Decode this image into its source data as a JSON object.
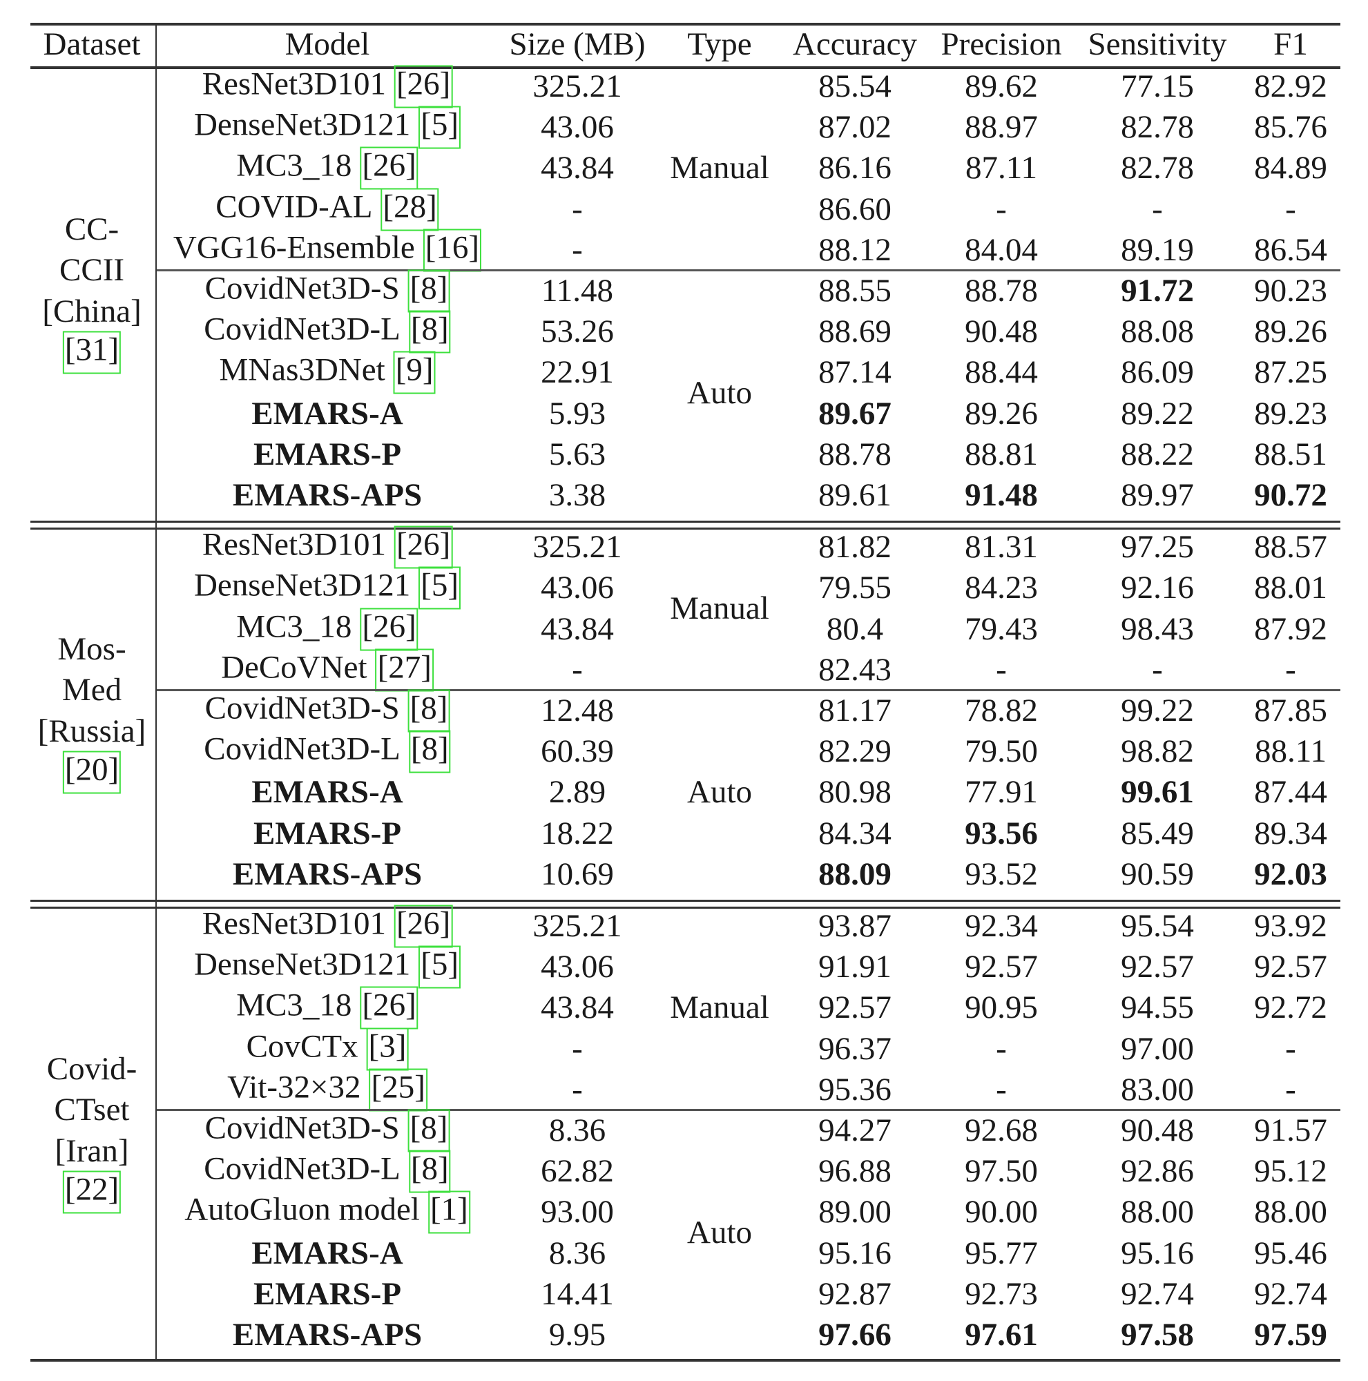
{
  "headers": {
    "dataset": "Dataset",
    "model": "Model",
    "size": "Size (MB)",
    "type": "Type",
    "accuracy": "Accuracy",
    "precision": "Precision",
    "sensitivity": "Sensitivity",
    "f1": "F1"
  },
  "colors": {
    "citation_box": "#3de03d",
    "rule": "#333333"
  },
  "sections": [
    {
      "dataset_lines": [
        "CC-",
        "CCII",
        "[China]"
      ],
      "dataset_cite": "[31]",
      "groups": [
        {
          "type": "Manual",
          "rows": [
            {
              "model": "ResNet3D101",
              "cite": "[26]",
              "size": "325.21",
              "accuracy": "85.54",
              "precision": "89.62",
              "sensitivity": "77.15",
              "f1": "82.92",
              "bold": []
            },
            {
              "model": "DenseNet3D121",
              "cite": "[5]",
              "size": "43.06",
              "accuracy": "87.02",
              "precision": "88.97",
              "sensitivity": "82.78",
              "f1": "85.76",
              "bold": []
            },
            {
              "model": "MC3_18",
              "cite": "[26]",
              "size": "43.84",
              "accuracy": "86.16",
              "precision": "87.11",
              "sensitivity": "82.78",
              "f1": "84.89",
              "bold": []
            },
            {
              "model": "COVID-AL",
              "cite": "[28]",
              "size": "-",
              "accuracy": "86.60",
              "precision": "-",
              "sensitivity": "-",
              "f1": "-",
              "bold": []
            },
            {
              "model": "VGG16-Ensemble",
              "cite": "[16]",
              "size": "-",
              "accuracy": "88.12",
              "precision": "84.04",
              "sensitivity": "89.19",
              "f1": "86.54",
              "bold": []
            }
          ]
        },
        {
          "type": "Auto",
          "rows": [
            {
              "model": "CovidNet3D-S",
              "cite": "[8]",
              "size": "11.48",
              "accuracy": "88.55",
              "precision": "88.78",
              "sensitivity": "91.72",
              "f1": "90.23",
              "bold": [
                "sensitivity"
              ]
            },
            {
              "model": "CovidNet3D-L",
              "cite": "[8]",
              "size": "53.26",
              "accuracy": "88.69",
              "precision": "90.48",
              "sensitivity": "88.08",
              "f1": "89.26",
              "bold": []
            },
            {
              "model": "MNas3DNet",
              "cite": "[9]",
              "size": "22.91",
              "accuracy": "87.14",
              "precision": "88.44",
              "sensitivity": "86.09",
              "f1": "87.25",
              "bold": []
            },
            {
              "model": "EMARS-A",
              "cite": "",
              "size": "5.93",
              "accuracy": "89.67",
              "precision": "89.26",
              "sensitivity": "89.22",
              "f1": "89.23",
              "bold": [
                "model",
                "accuracy"
              ]
            },
            {
              "model": "EMARS-P",
              "cite": "",
              "size": "5.63",
              "accuracy": "88.78",
              "precision": "88.81",
              "sensitivity": "88.22",
              "f1": "88.51",
              "bold": [
                "model"
              ]
            },
            {
              "model": "EMARS-APS",
              "cite": "",
              "size": "3.38",
              "accuracy": "89.61",
              "precision": "91.48",
              "sensitivity": "89.97",
              "f1": "90.72",
              "bold": [
                "model",
                "precision",
                "f1"
              ]
            }
          ]
        }
      ]
    },
    {
      "dataset_lines": [
        "Mos-",
        "Med",
        "[Russia]"
      ],
      "dataset_cite": "[20]",
      "groups": [
        {
          "type": "Manual",
          "rows": [
            {
              "model": "ResNet3D101",
              "cite": "[26]",
              "size": "325.21",
              "accuracy": "81.82",
              "precision": "81.31",
              "sensitivity": "97.25",
              "f1": "88.57",
              "bold": []
            },
            {
              "model": "DenseNet3D121",
              "cite": "[5]",
              "size": "43.06",
              "accuracy": "79.55",
              "precision": "84.23",
              "sensitivity": "92.16",
              "f1": "88.01",
              "bold": []
            },
            {
              "model": "MC3_18",
              "cite": "[26]",
              "size": "43.84",
              "accuracy": "80.4",
              "precision": "79.43",
              "sensitivity": "98.43",
              "f1": "87.92",
              "bold": []
            },
            {
              "model": "DeCoVNet",
              "cite": "[27]",
              "size": "-",
              "accuracy": "82.43",
              "precision": "-",
              "sensitivity": "-",
              "f1": "-",
              "bold": []
            }
          ]
        },
        {
          "type": "Auto",
          "rows": [
            {
              "model": "CovidNet3D-S",
              "cite": "[8]",
              "size": "12.48",
              "accuracy": "81.17",
              "precision": "78.82",
              "sensitivity": "99.22",
              "f1": "87.85",
              "bold": []
            },
            {
              "model": "CovidNet3D-L",
              "cite": "[8]",
              "size": "60.39",
              "accuracy": "82.29",
              "precision": "79.50",
              "sensitivity": "98.82",
              "f1": "88.11",
              "bold": []
            },
            {
              "model": "EMARS-A",
              "cite": "",
              "size": "2.89",
              "accuracy": "80.98",
              "precision": "77.91",
              "sensitivity": "99.61",
              "f1": "87.44",
              "bold": [
                "model",
                "sensitivity"
              ]
            },
            {
              "model": "EMARS-P",
              "cite": "",
              "size": "18.22",
              "accuracy": "84.34",
              "precision": "93.56",
              "sensitivity": "85.49",
              "f1": "89.34",
              "bold": [
                "model",
                "precision"
              ]
            },
            {
              "model": "EMARS-APS",
              "cite": "",
              "size": "10.69",
              "accuracy": "88.09",
              "precision": "93.52",
              "sensitivity": "90.59",
              "f1": "92.03",
              "bold": [
                "model",
                "accuracy",
                "f1"
              ]
            }
          ]
        }
      ]
    },
    {
      "dataset_lines": [
        "Covid-",
        "CTset",
        "[Iran]"
      ],
      "dataset_cite": "[22]",
      "groups": [
        {
          "type": "Manual",
          "rows": [
            {
              "model": "ResNet3D101",
              "cite": "[26]",
              "size": "325.21",
              "accuracy": "93.87",
              "precision": "92.34",
              "sensitivity": "95.54",
              "f1": "93.92",
              "bold": []
            },
            {
              "model": "DenseNet3D121",
              "cite": "[5]",
              "size": "43.06",
              "accuracy": "91.91",
              "precision": "92.57",
              "sensitivity": "92.57",
              "f1": "92.57",
              "bold": []
            },
            {
              "model": "MC3_18",
              "cite": "[26]",
              "size": "43.84",
              "accuracy": "92.57",
              "precision": "90.95",
              "sensitivity": "94.55",
              "f1": "92.72",
              "bold": []
            },
            {
              "model": "CovCTx",
              "cite": "[3]",
              "size": "-",
              "accuracy": "96.37",
              "precision": "-",
              "sensitivity": "97.00",
              "f1": "-",
              "bold": []
            },
            {
              "model": "Vit-32×32",
              "cite": "[25]",
              "size": "-",
              "accuracy": "95.36",
              "precision": "-",
              "sensitivity": "83.00",
              "f1": "-",
              "bold": []
            }
          ]
        },
        {
          "type": "Auto",
          "rows": [
            {
              "model": "CovidNet3D-S",
              "cite": "[8]",
              "size": "8.36",
              "accuracy": "94.27",
              "precision": "92.68",
              "sensitivity": "90.48",
              "f1": "91.57",
              "bold": []
            },
            {
              "model": "CovidNet3D-L",
              "cite": "[8]",
              "size": "62.82",
              "accuracy": "96.88",
              "precision": "97.50",
              "sensitivity": "92.86",
              "f1": "95.12",
              "bold": []
            },
            {
              "model": "AutoGluon model",
              "cite": "[1]",
              "size": "93.00",
              "accuracy": "89.00",
              "precision": "90.00",
              "sensitivity": "88.00",
              "f1": "88.00",
              "bold": []
            },
            {
              "model": "EMARS-A",
              "cite": "",
              "size": "8.36",
              "accuracy": "95.16",
              "precision": "95.77",
              "sensitivity": "95.16",
              "f1": "95.46",
              "bold": [
                "model"
              ]
            },
            {
              "model": "EMARS-P",
              "cite": "",
              "size": "14.41",
              "accuracy": "92.87",
              "precision": "92.73",
              "sensitivity": "92.74",
              "f1": "92.74",
              "bold": [
                "model"
              ]
            },
            {
              "model": "EMARS-APS",
              "cite": "",
              "size": "9.95",
              "accuracy": "97.66",
              "precision": "97.61",
              "sensitivity": "97.58",
              "f1": "97.59",
              "bold": [
                "model",
                "accuracy",
                "precision",
                "sensitivity",
                "f1"
              ]
            }
          ]
        }
      ]
    }
  ]
}
